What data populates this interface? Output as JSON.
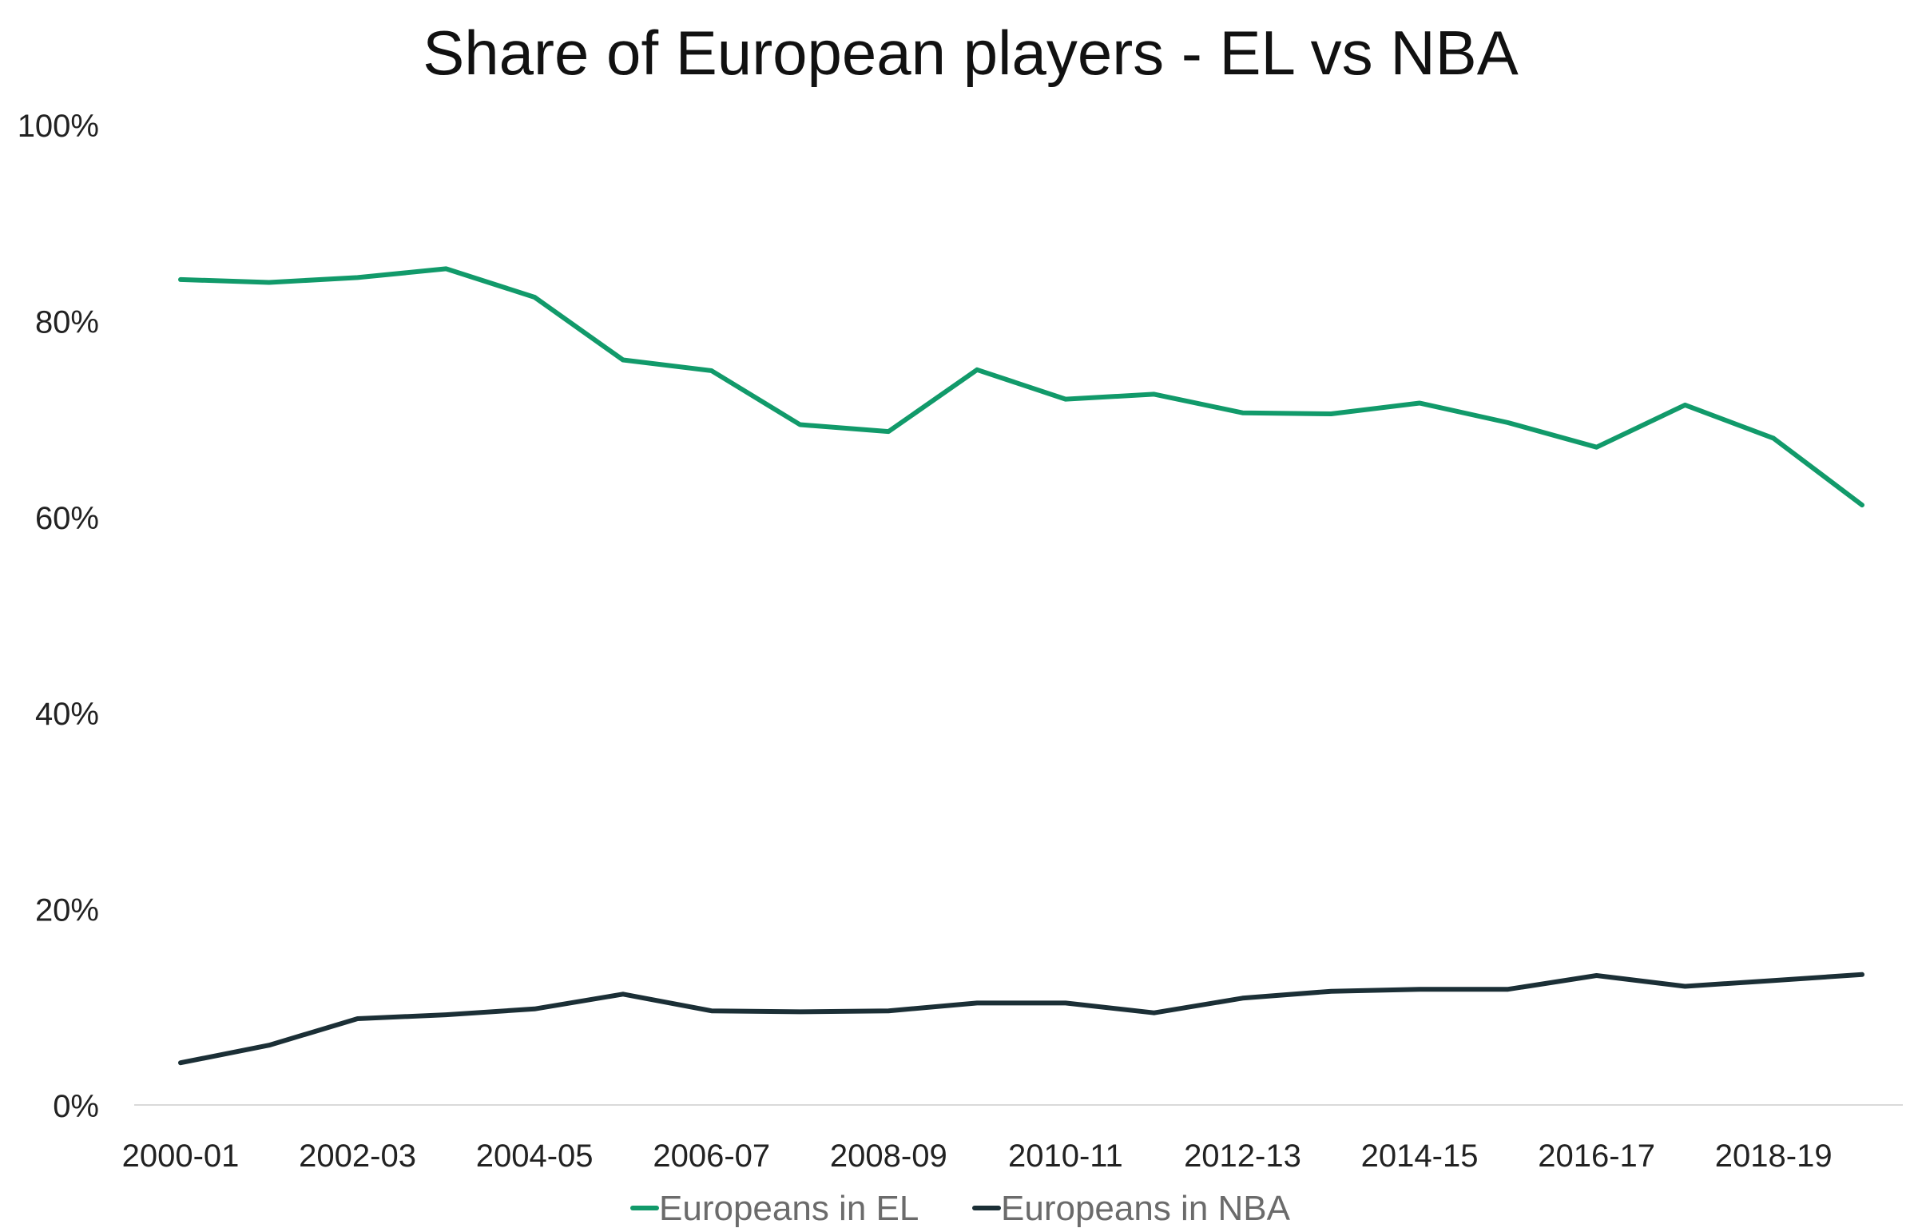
{
  "chart_data": {
    "type": "line",
    "title": "Share of European players - EL vs NBA",
    "xlabel": "",
    "ylabel": "",
    "x": [
      "2000-01",
      "2001-02",
      "2002-03",
      "2003-04",
      "2004-05",
      "2005-06",
      "2006-07",
      "2007-08",
      "2008-09",
      "2009-10",
      "2010-11",
      "2011-12",
      "2012-13",
      "2013-14",
      "2014-15",
      "2015-16",
      "2016-17",
      "2017-18",
      "2018-19",
      "2019-20"
    ],
    "x_tick_labels": [
      "2000-01",
      "2002-03",
      "2004-05",
      "2006-07",
      "2008-09",
      "2010-11",
      "2012-13",
      "2014-15",
      "2016-17",
      "2018-19"
    ],
    "y_tick_labels": [
      "0%",
      "20%",
      "40%",
      "60%",
      "80%",
      "100%"
    ],
    "y_ticks": [
      0,
      20,
      40,
      60,
      80,
      100
    ],
    "ylim": [
      0,
      100
    ],
    "grid": false,
    "legend_position": "bottom",
    "series": [
      {
        "name": "Europeans in EL",
        "color": "#119a6a",
        "values": [
          84.2,
          83.9,
          84.4,
          85.3,
          82.4,
          76.0,
          74.9,
          69.4,
          68.7,
          75.0,
          72.0,
          72.5,
          70.6,
          70.5,
          71.6,
          69.6,
          67.1,
          71.4,
          68.0,
          61.2
        ]
      },
      {
        "name": "Europeans in NBA",
        "color": "#1b2f36",
        "values": [
          4.3,
          6.1,
          8.8,
          9.2,
          9.8,
          11.3,
          9.6,
          9.5,
          9.6,
          10.4,
          10.4,
          9.4,
          10.9,
          11.6,
          11.8,
          11.8,
          13.2,
          12.1,
          12.7,
          13.3
        ]
      }
    ]
  }
}
